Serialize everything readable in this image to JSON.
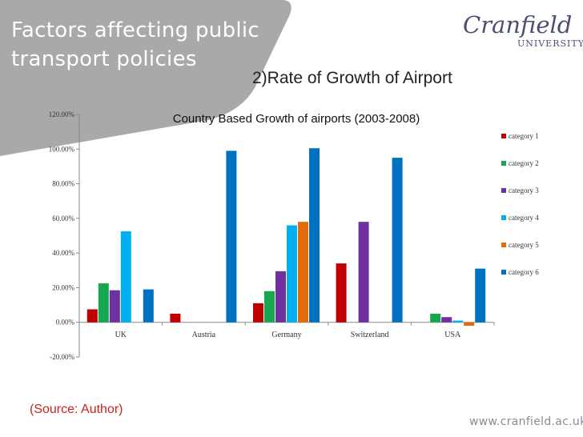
{
  "header": {
    "title_line1": "Factors affecting public",
    "title_line2": "transport policies",
    "logo_word": "Cranfield",
    "logo_sub": "UNIVERSITY"
  },
  "subtitle": "2)Rate of Growth of Airport",
  "source": "(Source: Author)",
  "website": "www.cranfield.ac.uk",
  "colors": {
    "banner": "#a9a9a9",
    "category 1": "#c00000",
    "category 2": "#16a750",
    "category 3": "#7030a0",
    "category 4": "#00b0f0",
    "category 5": "#e36c0a",
    "category 6": "#0070c0"
  },
  "chart_data": {
    "type": "bar",
    "title": "Country Based Growth of airports (2003-2008)",
    "categories": [
      "UK",
      "Austria",
      "Germany",
      "Switzerland",
      "USA"
    ],
    "series": [
      {
        "name": "category 1",
        "values": [
          7.5,
          5,
          11,
          34,
          null
        ]
      },
      {
        "name": "category 2",
        "values": [
          22.5,
          null,
          18,
          null,
          5
        ]
      },
      {
        "name": "category 3",
        "values": [
          18.5,
          null,
          29.5,
          58,
          3
        ]
      },
      {
        "name": "category 4",
        "values": [
          52.5,
          null,
          56,
          null,
          1
        ]
      },
      {
        "name": "category 5",
        "values": [
          null,
          null,
          58,
          null,
          -2
        ]
      },
      {
        "name": "category 6",
        "values": [
          19,
          99,
          100.5,
          95,
          31
        ]
      }
    ],
    "ylim": [
      -20,
      120
    ],
    "y_ticks": [
      "-20.00%",
      "0.00%",
      "20.00%",
      "40.00%",
      "60.00%",
      "80.00%",
      "100.00%",
      "120.00%"
    ],
    "ylabel": "",
    "xlabel": "",
    "grid": false,
    "legend_position": "right"
  }
}
